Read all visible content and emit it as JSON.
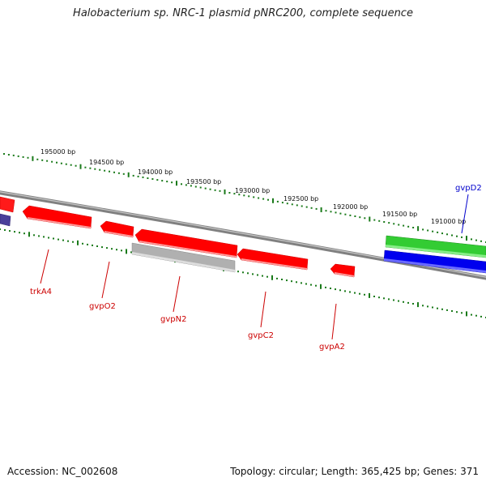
{
  "title": "Halobacterium sp. NRC-1 plasmid pNRC200, complete sequence",
  "footer": {
    "accession": "Accession: NC_002608",
    "summary": "Topology: circular; Length: 365,425 bp; Genes: 371"
  },
  "scale_labels": [
    "195000 bp",
    "194500 bp",
    "194000 bp",
    "193500 bp",
    "193000 bp",
    "192500 bp",
    "192000 bp",
    "191500 bp",
    "191000 bp"
  ],
  "genes_lower": [
    "trkA4",
    "gvpO2",
    "gvpN2",
    "gvpC2",
    "gvpA2"
  ],
  "genes_upper": [
    "gvpD2"
  ],
  "colors": {
    "backbone": "#808080",
    "tick": "#1a7a1a",
    "gene_reverse": "#ff0000",
    "gene_forward": "#0000ee",
    "gene_green": "#33cc33",
    "gene_gray": "#b0b0b0",
    "gene_purple": "#4a3f9a",
    "label_reverse": "#cc0000",
    "label_forward": "#0000cc"
  }
}
